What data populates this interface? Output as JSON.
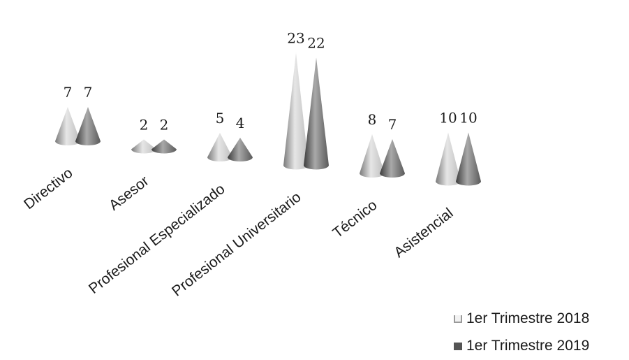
{
  "chart_data": {
    "type": "bar",
    "style": "3d-cone",
    "categories": [
      "Directivo",
      "Asesor",
      "Profesional Especializado",
      "Profesional Universitario",
      "Técnico",
      "Asistencial"
    ],
    "series": [
      {
        "name": "1er Trimestre 2018",
        "values": [
          7,
          2,
          5,
          23,
          8,
          10
        ]
      },
      {
        "name": "1er Trimestre 2019",
        "values": [
          7,
          2,
          4,
          22,
          7,
          10
        ]
      }
    ],
    "data_labels": {
      "series_0": [
        "7",
        "2",
        "5",
        "23",
        "8",
        "10"
      ],
      "series_1": [
        "7",
        "2",
        "4",
        "22",
        "7",
        "10"
      ]
    },
    "legend_position": "bottom-right",
    "grid": false,
    "colors": {
      "series_0": "#d8d8d8",
      "series_1": "#6e6e6e"
    }
  }
}
